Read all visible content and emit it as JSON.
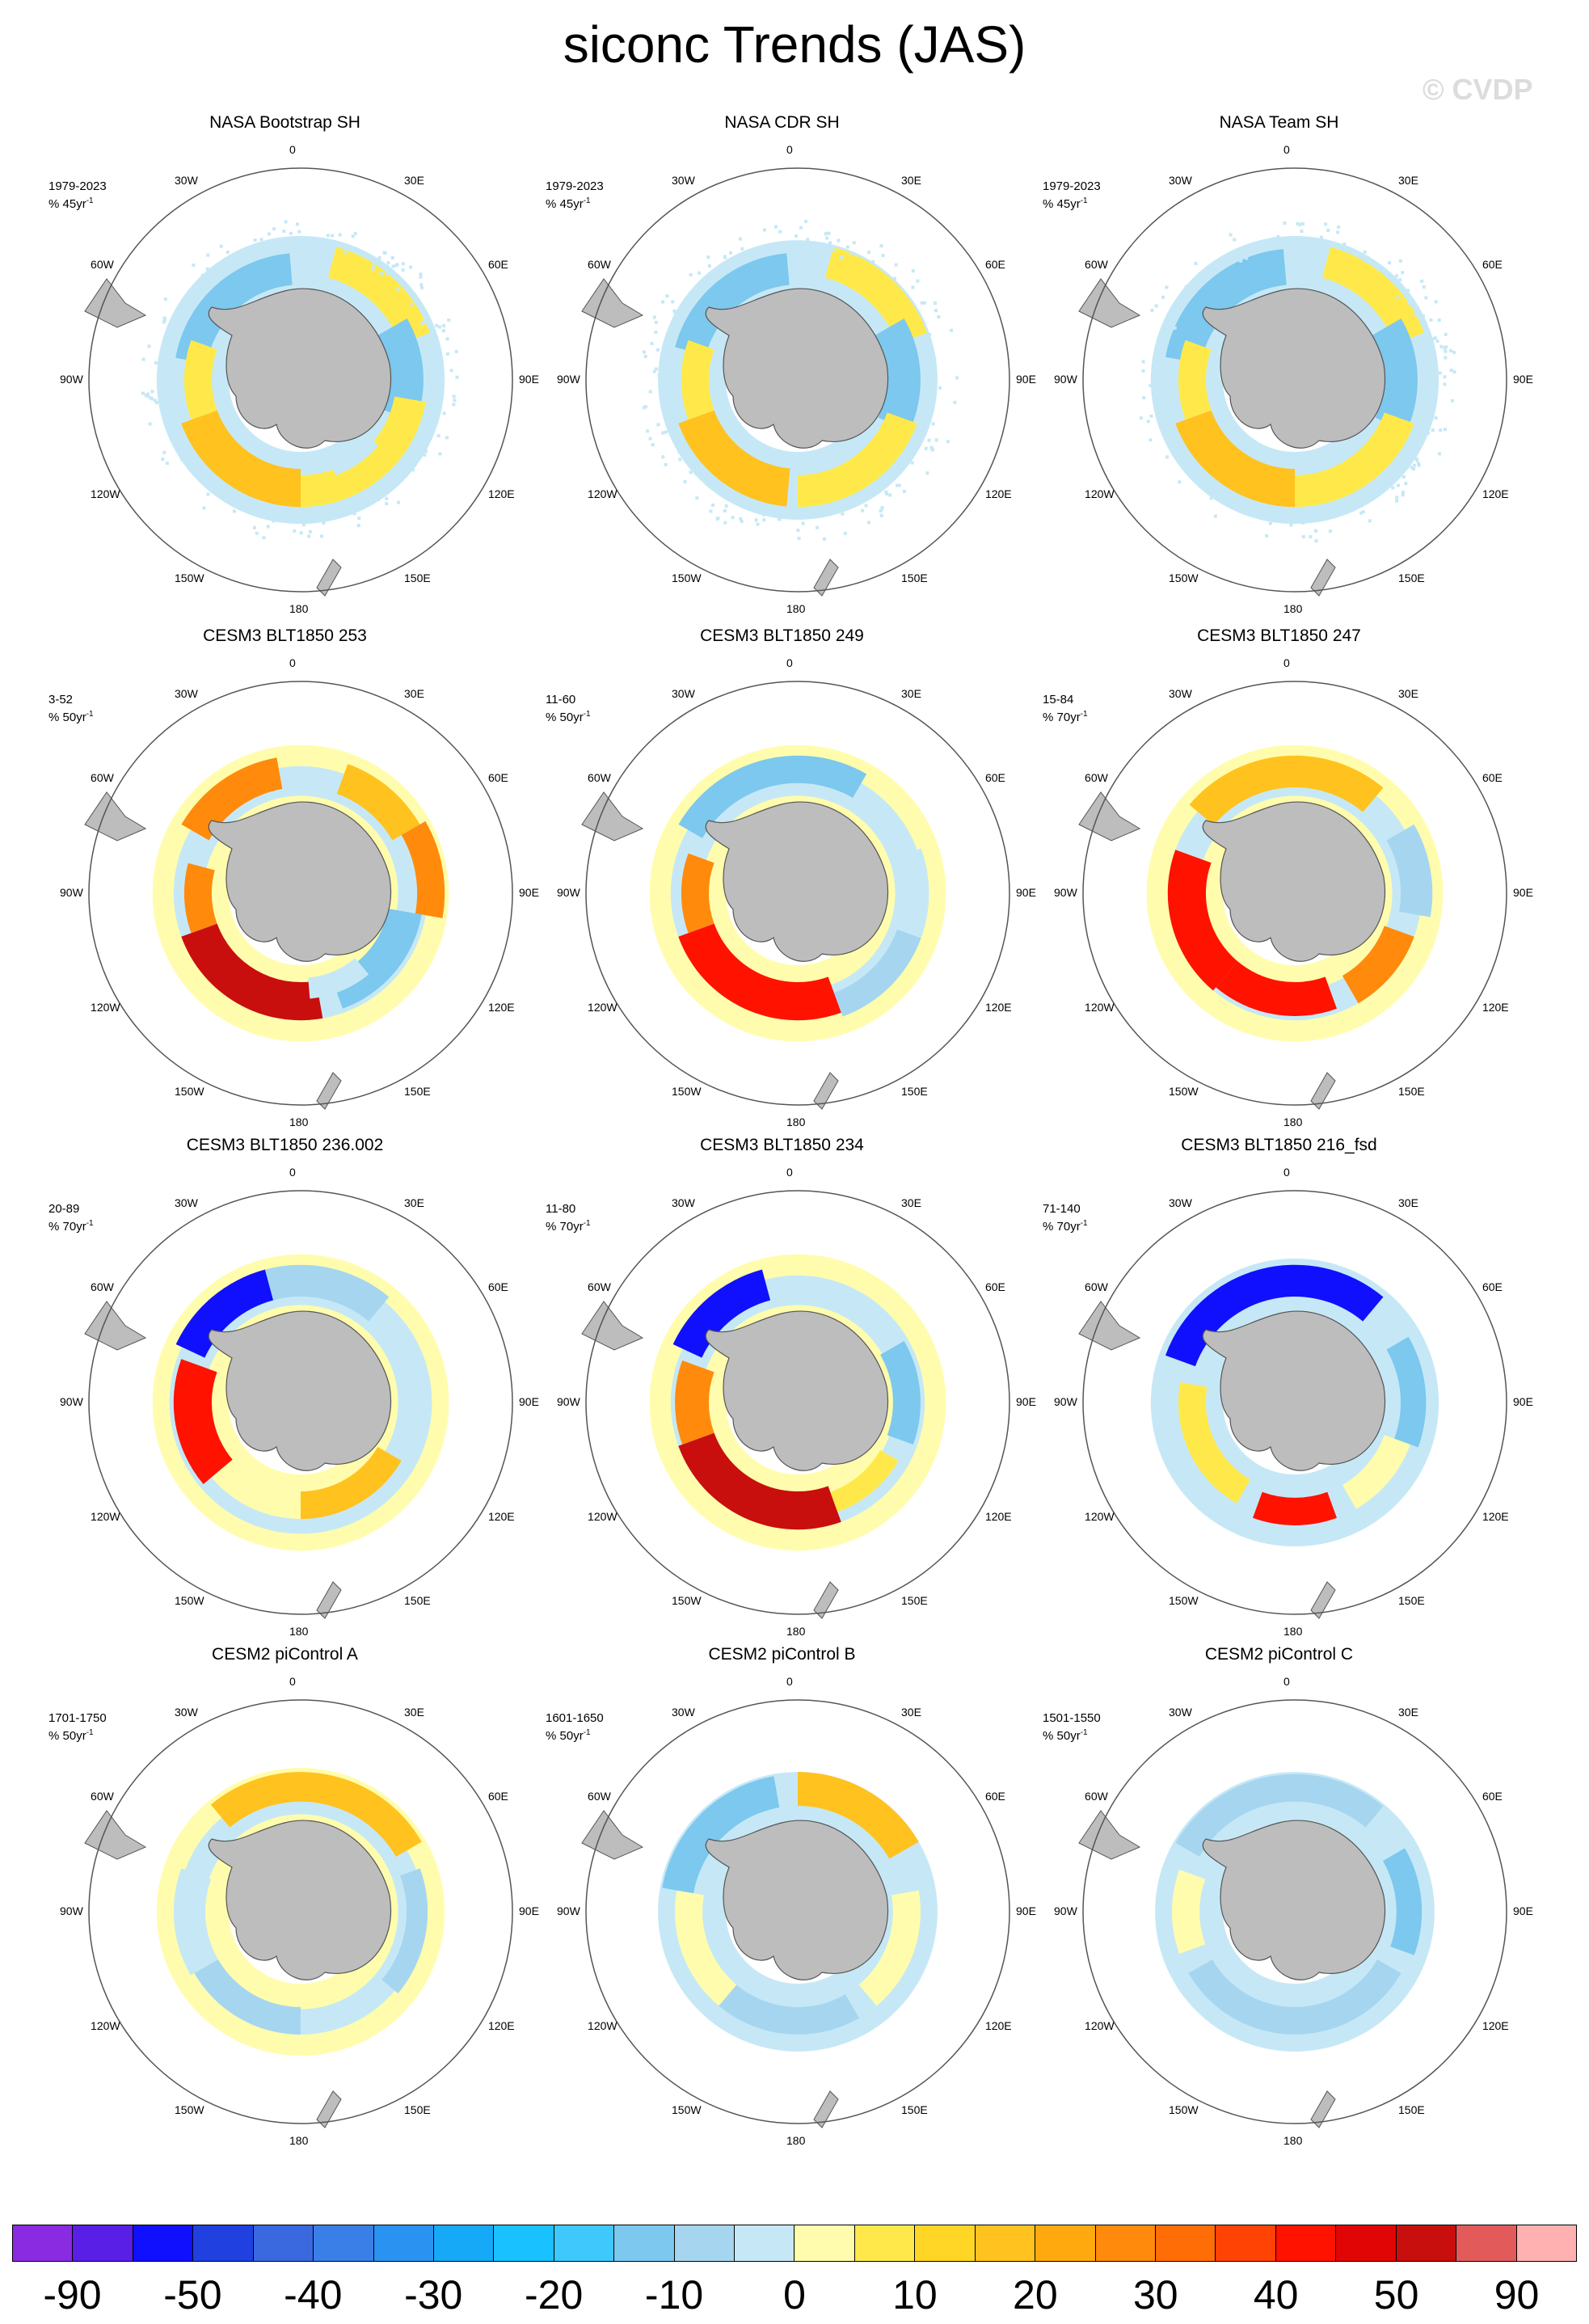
{
  "title": "siconc Trends (JAS)",
  "watermark": "© CVDP",
  "lon_labels": [
    "0",
    "30E",
    "60E",
    "90E",
    "120E",
    "150E",
    "180",
    "150W",
    "120W",
    "90W",
    "60W",
    "30W"
  ],
  "panels": [
    {
      "title": "NASA Bootstrap SH",
      "period": "1979-2023",
      "units": "% 45yr",
      "pattern": "obs_bootstrap"
    },
    {
      "title": "NASA CDR SH",
      "period": "1979-2023",
      "units": "% 45yr",
      "pattern": "obs_cdr"
    },
    {
      "title": "NASA Team SH",
      "period": "1979-2023",
      "units": "% 45yr",
      "pattern": "obs_team"
    },
    {
      "title": "CESM3 BLT1850 253",
      "period": "3-52",
      "units": "% 50yr",
      "pattern": "cesm3_253"
    },
    {
      "title": "CESM3 BLT1850 249",
      "period": "11-60",
      "units": "% 50yr",
      "pattern": "cesm3_249"
    },
    {
      "title": "CESM3 BLT1850 247",
      "period": "15-84",
      "units": "% 70yr",
      "pattern": "cesm3_247"
    },
    {
      "title": "CESM3 BLT1850 236.002",
      "period": "20-89",
      "units": "% 70yr",
      "pattern": "cesm3_236"
    },
    {
      "title": "CESM3 BLT1850 234",
      "period": "11-80",
      "units": "% 70yr",
      "pattern": "cesm3_234"
    },
    {
      "title": "CESM3 BLT1850 216_fsd",
      "period": "71-140",
      "units": "% 70yr",
      "pattern": "cesm3_216"
    },
    {
      "title": "CESM2 piControl A",
      "period": "1701-1750",
      "units": "% 50yr",
      "pattern": "cesm2_a"
    },
    {
      "title": "CESM2 piControl B",
      "period": "1601-1650",
      "units": "% 50yr",
      "pattern": "cesm2_b"
    },
    {
      "title": "CESM2 piControl C",
      "period": "1501-1550",
      "units": "% 50yr",
      "pattern": "cesm2_c"
    }
  ],
  "units_exponent": "-1",
  "colorbar": {
    "colors": [
      "#8a2be2",
      "#5a1fe6",
      "#1010ff",
      "#2041e0",
      "#3a68df",
      "#3a7fe8",
      "#2a93f2",
      "#16a9f7",
      "#1ac1ff",
      "#3fc8fb",
      "#7cc8ee",
      "#a6d6ef",
      "#c6e8f6",
      "#fffdad",
      "#ffe94a",
      "#ffd626",
      "#ffc21f",
      "#ffa90f",
      "#ff8a0c",
      "#ff6d07",
      "#ff4304",
      "#ff1200",
      "#e20505",
      "#c90e0e",
      "#e35a5a",
      "#ffb1b1"
    ],
    "labels": [
      "-90",
      "-50",
      "-40",
      "-30",
      "-20",
      "-10",
      "0",
      "10",
      "20",
      "30",
      "40",
      "50",
      "90"
    ]
  }
}
